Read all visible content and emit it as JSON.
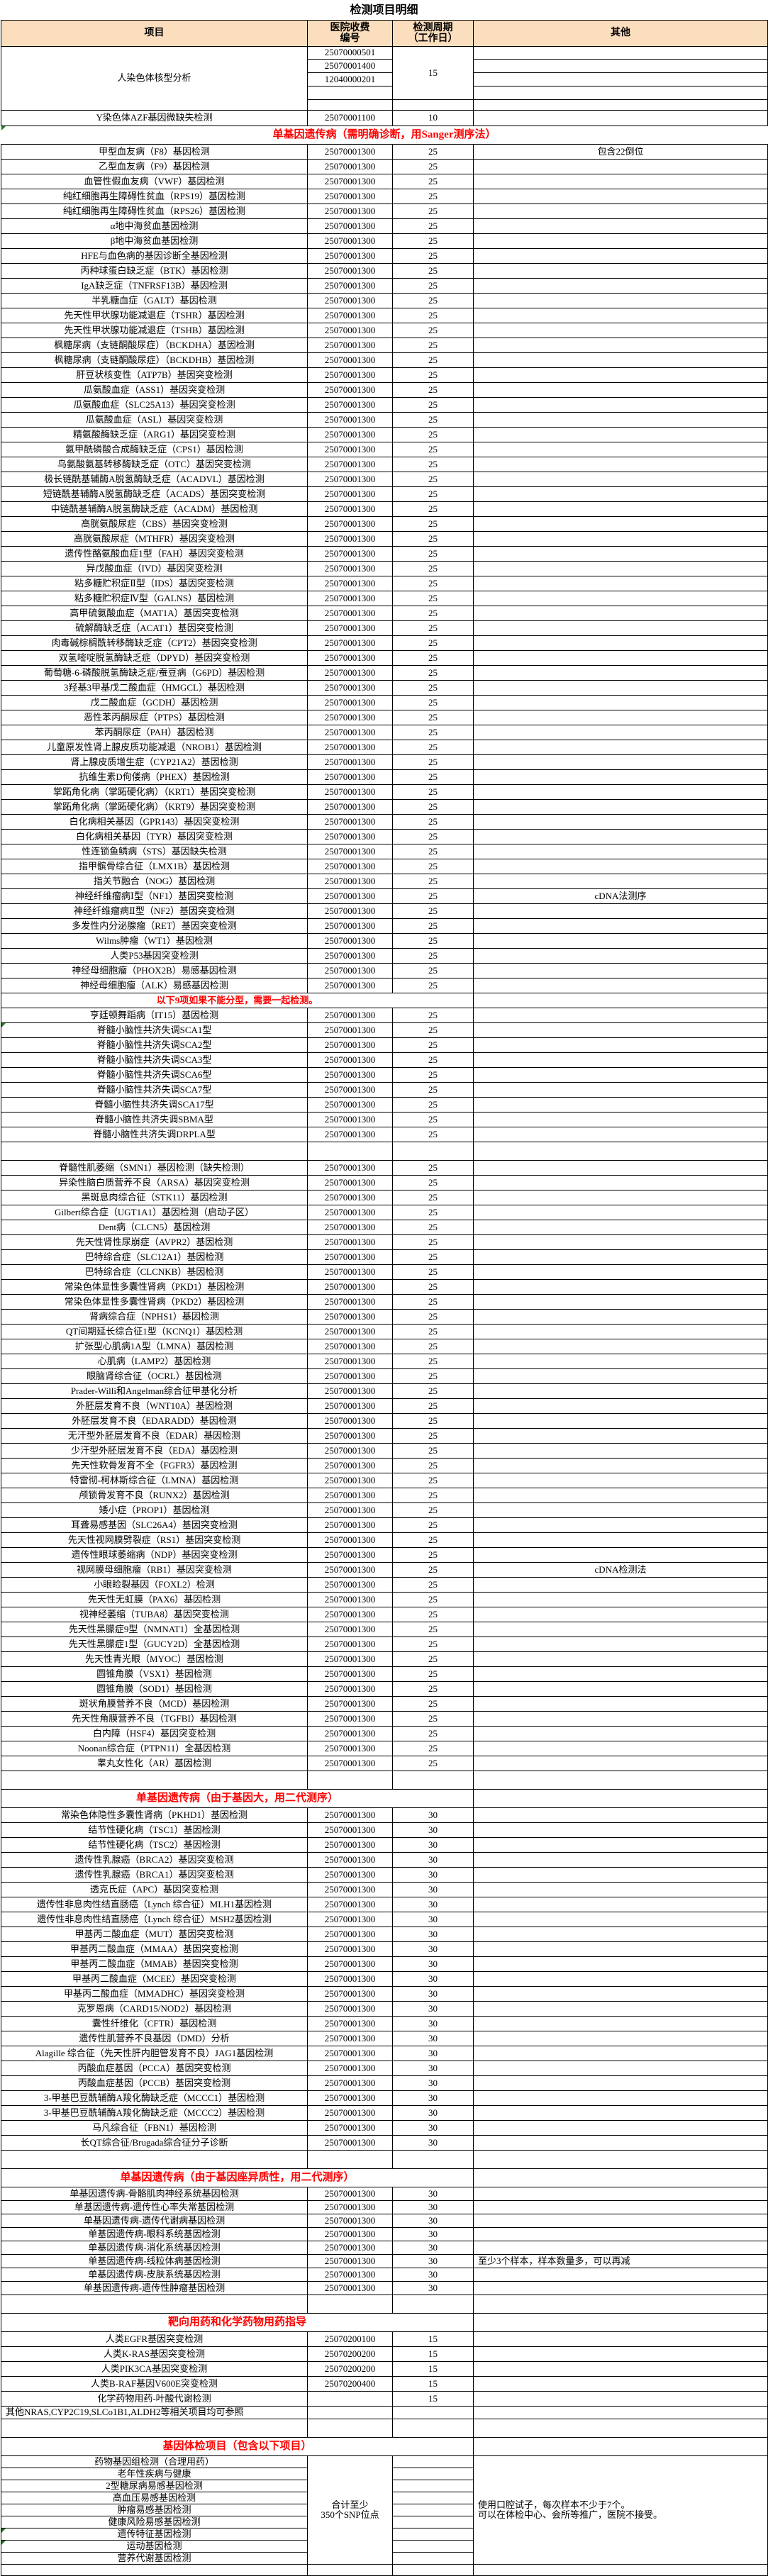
{
  "title": "检测项目明细",
  "columns": [
    "项目",
    "医院收费\n编号",
    "检测周期\n（工作日）",
    "其他"
  ],
  "blocks": [
    {
      "kind": "karyotype",
      "item": "人染色体核型分析",
      "codes": [
        "25070000501",
        "25070001400",
        "12040000201",
        "",
        ""
      ],
      "period": "15"
    },
    {
      "kind": "rows",
      "rh": 22,
      "rows": [
        {
          "i": "Y染色体AZF基因微缺失检测",
          "c": "25070001100",
          "p": "10",
          "o": ""
        }
      ]
    },
    {
      "kind": "section",
      "label": "单基因遗传病（需明确诊断，用Sanger测序法）",
      "full": 1,
      "marker": 1
    },
    {
      "kind": "rows",
      "c": "25070001300",
      "p": "25",
      "rows": [
        {
          "i": "甲型血友病（F8）基因检测",
          "o": "包含22倒位"
        },
        {
          "i": "乙型血友病（F9）基因检测"
        },
        {
          "i": "血管性假血友病（VWF）基因检测"
        },
        {
          "i": "纯红细胞再生障碍性贫血（RPS19）基因检测"
        },
        {
          "i": "纯红细胞再生障碍性贫血（RPS26）基因检测"
        },
        {
          "i": "α地中海贫血基因检测"
        },
        {
          "i": "β地中海贫血基因检测"
        },
        {
          "i": "HFE与血色病的基因诊断全基因检测"
        },
        {
          "i": "丙种球蛋白缺乏症（BTK）基因检测"
        },
        {
          "i": "IgA缺乏症（TNFRSF13B）基因检测"
        },
        {
          "i": "半乳糖血症（GALT）基因检测"
        },
        {
          "i": "先天性甲状腺功能减退症（TSHR）基因检测"
        },
        {
          "i": "先天性甲状腺功能减退症（TSHB）基因检测"
        },
        {
          "i": "枫糖尿病（支链酮酸尿症）（BCKDHA）基因检测"
        },
        {
          "i": "枫糖尿病（支链酮酸尿症）（BCKDHB）基因检测"
        },
        {
          "i": "肝豆状核变性（ATP7B）基因突变检测"
        },
        {
          "i": "瓜氨酸血症（ASS1）基因突变检测"
        },
        {
          "i": "瓜氨酸血症（SLC25A13）基因突变检测"
        },
        {
          "i": "瓜氨酸血症（ASL）基因突变检测"
        },
        {
          "i": "精氨酸酶缺乏症（ARG1）基因突变检测"
        },
        {
          "i": "氨甲酰磷酸合成酶缺乏症（CPS1）基因检测"
        },
        {
          "i": "鸟氨酸氨基转移酶缺乏症（OTC）基因突变检测"
        },
        {
          "i": "极长链酰基辅酶A脱氢酶缺乏症（ACADVL）基因检测"
        },
        {
          "i": "短链酰基辅酶A脱氢酶缺乏症（ACADS）基因突变检测"
        },
        {
          "i": "中链酰基辅酶A脱氢酶缺乏症（ACADM）基因检测"
        },
        {
          "i": "高胱氨酸尿症（CBS）基因突变检测"
        },
        {
          "i": "高胱氨酸尿症（MTHFR）基因突变检测"
        },
        {
          "i": "遗传性酪氨酸血症1型（FAH）基因突变检测"
        },
        {
          "i": "异戊酸血症（IVD）基因突变检测"
        },
        {
          "i": "粘多糖贮积症Ⅱ型（IDS）基因突变检测"
        },
        {
          "i": "粘多糖贮积症Ⅳ型（GALNS）基因检测"
        },
        {
          "i": "高甲硫氨酸血症（MAT1A）基因突变检测"
        },
        {
          "i": "硫解酶缺乏症（ACAT1）基因突变检测"
        },
        {
          "i": "肉毒碱棕榈酰转移酶缺乏症（CPT2）基因突变检测"
        },
        {
          "i": "双氢嘧啶脱氢酶缺乏症（DPYD）基因突变检测"
        },
        {
          "i": "葡萄糖-6-磷酸脱氢酶缺乏症/蚕豆病（G6PD）基因检测"
        },
        {
          "i": "3羟基3甲基戊二酸血症（HMGCL）基因检测"
        },
        {
          "i": "戊二酸血症（GCDH）基因检测"
        },
        {
          "i": "恶性苯丙酮尿症（PTPS）基因检测"
        },
        {
          "i": "苯丙酮尿症（PAH）基因检测"
        },
        {
          "i": "儿童原发性肾上腺皮质功能减退（NROB1）基因检测"
        },
        {
          "i": "肾上腺皮质增生症（CYP21A2）基因检测"
        },
        {
          "i": "抗维生素D佝偻病（PHEX）基因检测"
        },
        {
          "i": "掌跖角化病（掌跖硬化病）（KRT1）基因突变检测"
        },
        {
          "i": "掌跖角化病（掌跖硬化病）（KRT9）基因突变检测"
        },
        {
          "i": "白化病相关基因（GPR143）基因突变检测"
        },
        {
          "i": "白化病相关基因（TYR）基因突变检测"
        },
        {
          "i": "性连锁鱼鳞病（STS）基因缺失检测"
        },
        {
          "i": "指甲髌骨综合征（LMX1B）基因检测"
        },
        {
          "i": "指关节融合（NOG）基因检测"
        },
        {
          "i": "神经纤维瘤病Ⅰ型（NF1）基因突变检测",
          "o": "cDNA法测序"
        },
        {
          "i": "神经纤维瘤病Ⅱ型（NF2）基因突变检测"
        },
        {
          "i": "多发性内分泌腺瘤（RET）基因突变检测"
        },
        {
          "i": "Wilms肿瘤（WT1）基因检测"
        },
        {
          "i": "人类P53基因突变检测"
        },
        {
          "i": "神经母细胞瘤（PHOX2B）易感基因检测"
        },
        {
          "i": "神经母细胞瘤（ALK）易感基因检测"
        }
      ]
    },
    {
      "kind": "note",
      "label": "以下9项如果不能分型，需要一起检测。"
    },
    {
      "kind": "rows",
      "c": "25070001300",
      "p": "25",
      "rows": [
        {
          "i": "亨廷顿舞蹈病（IT15）基因检测"
        },
        {
          "i": "脊髓小脑性共济失调SCA1型",
          "m": 1
        },
        {
          "i": "脊髓小脑性共济失调SCA2型"
        },
        {
          "i": "脊髓小脑性共济失调SCA3型"
        },
        {
          "i": "脊髓小脑性共济失调SCA6型"
        },
        {
          "i": "脊髓小脑性共济失调SCA7型"
        },
        {
          "i": "脊髓小脑性共济失调SCA17型"
        },
        {
          "i": "脊髓小脑性共济失调SBMA型"
        },
        {
          "i": "脊髓小脑性共济失调DRPLA型"
        }
      ]
    },
    {
      "kind": "empty"
    },
    {
      "kind": "rows",
      "c": "25070001300",
      "p": "25",
      "rows": [
        {
          "i": "脊髓性肌萎缩（SMN1）基因检测（缺失检测）"
        },
        {
          "i": "异染性脑白质营养不良（ARSA）基因突变检测"
        },
        {
          "i": "黑斑息肉综合征（STK11）基因检测"
        },
        {
          "i": "Gilbert综合症（UGT1A1）基因检测（启动子区）"
        },
        {
          "i": "Dent病（CLCN5）基因检测"
        },
        {
          "i": "先天性肾性尿崩症（AVPR2）基因检测"
        },
        {
          "i": "巴特综合症（SLC12A1）基因检测"
        },
        {
          "i": "巴特综合症（CLCNKB）基因检测"
        },
        {
          "i": "常染色体显性多囊性肾病（PKD1）基因检测"
        },
        {
          "i": "常染色体显性多囊性肾病（PKD2）基因检测"
        },
        {
          "i": "肾病综合症（NPHS1）基因检测"
        },
        {
          "i": "QT间期延长综合征1型（KCNQ1）基因检测"
        },
        {
          "i": "扩张型心肌病1A型（LMNA）基因检测"
        },
        {
          "i": "心肌病（LAMP2）基因检测"
        },
        {
          "i": "眼脑肾综合征（OCRL）基因检测"
        },
        {
          "i": "Prader-Willi和Angelman综合征甲基化分析"
        },
        {
          "i": "外胚层发育不良（WNT10A）基因检测"
        },
        {
          "i": "外胚层发育不良（EDARADD）基因检测"
        },
        {
          "i": "无汗型外胚层发育不良（EDAR）基因检测"
        },
        {
          "i": "少汗型外胚层发育不良（EDA）基因检测"
        },
        {
          "i": "先天性软骨发育不全（FGFR3）基因检测"
        },
        {
          "i": "特雷彻-柯林斯综合征（LMNA）基因检测"
        },
        {
          "i": "颅锁骨发育不良（RUNX2）基因检测"
        },
        {
          "i": "矮小症（PROP1）基因检测"
        },
        {
          "i": "耳聋易感基因（SLC26A4）基因突变检测"
        },
        {
          "i": "先天性视网膜劈裂症（RS1）基因突变检测"
        },
        {
          "i": "遗传性眼球萎缩病（NDP）基因突变检测"
        },
        {
          "i": "视网膜母细胞瘤（RB1）基因突变检测",
          "o": "cDNA检测法"
        },
        {
          "i": "小眼睑裂基因（FOXL2）检测"
        },
        {
          "i": "先天性无虹膜（PAX6）基因检测"
        },
        {
          "i": "视神经萎缩（TUBA8）基因突变检测"
        },
        {
          "i": "先天性黑朦症9型（NMNAT1）全基因检测"
        },
        {
          "i": "先天性黑朦症1型（GUCY2D）全基因检测"
        },
        {
          "i": "先天性青光眼（MYOC）基因检测"
        },
        {
          "i": "圆锥角膜（VSX1）基因检测"
        },
        {
          "i": "圆锥角膜（SOD1）基因检测"
        },
        {
          "i": "斑状角膜营养不良（MCD）基因检测"
        },
        {
          "i": "先天性角膜营养不良（TGFBI）基因检测"
        },
        {
          "i": "白内障（HSF4）基因突变检测"
        },
        {
          "i": "Noonan综合症（PTPN11）全基因检测"
        },
        {
          "i": "睾丸女性化（AR）基因检测"
        }
      ]
    },
    {
      "kind": "empty"
    },
    {
      "kind": "section",
      "label": "单基因遗传病（由于基因大，用二代测序）"
    },
    {
      "kind": "rows",
      "c": "25070001300",
      "p": "30",
      "rows": [
        {
          "i": "常染色体隐性多囊性肾病（PKHD1）基因检测"
        },
        {
          "i": "结节性硬化病（TSC1）基因检测"
        },
        {
          "i": "结节性硬化病（TSC2）基因检测"
        },
        {
          "i": "遗传性乳腺癌（BRCA2）基因突变检测"
        },
        {
          "i": "遗传性乳腺癌（BRCA1）基因突变检测"
        },
        {
          "i": "透克氏症（APC）基因突变检测"
        },
        {
          "i": "遗传性非息肉性结直肠癌（Lynch 综合征）MLH1基因检测"
        },
        {
          "i": "遗传性非息肉性结直肠癌（Lynch 综合征）MSH2基因检测"
        },
        {
          "i": "甲基丙二酸血症（MUT）基因突变检测"
        },
        {
          "i": "甲基丙二酸血症（MMAA）基因突变检测"
        },
        {
          "i": "甲基丙二酸血症（MMAB）基因突变检测"
        },
        {
          "i": "甲基丙二酸血症（MCEE）基因突变检测"
        },
        {
          "i": "甲基丙二酸血症（MMADHC）基因突变检测"
        },
        {
          "i": "克罗恩病（CARD15/NOD2）基因检测"
        },
        {
          "i": "囊性纤维化（CFTR）基因检测"
        },
        {
          "i": "遗传性肌营养不良基因（DMD）分析"
        },
        {
          "i": "Alagille 综合征（先天性肝内胆管发育不良）JAG1基因检测"
        },
        {
          "i": "丙酸血症基因（PCCA）基因突变检测"
        },
        {
          "i": "丙酸血症基因（PCCB）基因突变检测"
        },
        {
          "i": "3-甲基巴豆酰辅酶A羧化酶缺乏症（MCCC1）基因检测"
        },
        {
          "i": "3-甲基巴豆酰辅酶A羧化酶缺乏症（MCCC2）基因检测"
        },
        {
          "i": "马凡综合征（FBN1）基因检测"
        },
        {
          "i": "长QT综合征/Brugada综合征分子诊断"
        }
      ]
    },
    {
      "kind": "empty"
    },
    {
      "kind": "section",
      "label": "单基因遗传病（由于基因座异质性，用二代测序）"
    },
    {
      "kind": "rows",
      "c": "25070001300",
      "p": "30",
      "rh": 19,
      "rows": [
        {
          "i": "单基因遗传病-骨骼肌肉神经系统基因检测"
        },
        {
          "i": "单基因遗传病-遗传性心率失常基因检测"
        },
        {
          "i": "单基因遗传病-遗传代谢病基因检测"
        },
        {
          "i": "单基因遗传病-眼科系统基因检测"
        },
        {
          "i": "单基因遗传病-消化系统基因检测"
        },
        {
          "i": "单基因遗传病-线粒体病基因检测",
          "o": "至少3个样本，样本数量多，可以再减",
          "ol": 1
        },
        {
          "i": "单基因遗传病-皮肤系统基因检测"
        },
        {
          "i": "单基因遗传病-遗传性肿瘤基因检测"
        }
      ]
    },
    {
      "kind": "empty"
    },
    {
      "kind": "section",
      "label": "靶向用药和化学药物用药指导"
    },
    {
      "kind": "rows",
      "p": "15",
      "rows": [
        {
          "i": "人类EGFR基因突变检测",
          "c": "25070200100"
        },
        {
          "i": "人类K-RAS基因突变检测",
          "c": "25070200200"
        },
        {
          "i": "人类PIK3CA基因突变检测",
          "c": "25070200200"
        },
        {
          "i": "人类B-RAF基因V600E突变检测",
          "c": "25070200400"
        },
        {
          "i": "化学药物用药-叶酸代谢检测",
          "c": ""
        },
        {
          "i": "其他NRAS,CYP2C19,SLCo1B1,ALDH2等相关项目均可参照",
          "c": "",
          "p": "",
          "o": "",
          "l": 1,
          "rh": 18
        }
      ]
    },
    {
      "kind": "empty"
    },
    {
      "kind": "section",
      "label": "基因体检项目（包含以下项目）"
    },
    {
      "kind": "physical",
      "items": [
        {
          "i": "药物基因组检测（合理用药）"
        },
        {
          "i": "老年性疾病与健康"
        },
        {
          "i": "2型糖尿病易感基因检测"
        },
        {
          "i": "高血压易感基因检测"
        },
        {
          "i": "肿瘤易感基因检测"
        },
        {
          "i": "健康风险易感基因检测"
        },
        {
          "i": "遗传特征基因检测",
          "m": 1
        },
        {
          "i": "运动基因检测",
          "m": 1
        },
        {
          "i": "营养代谢基因检测"
        }
      ],
      "code_note": "合计至少\n350个SNP位点",
      "other_note": "使用口腔试子，每次样本不少于7个。\n可以在体检中心、会所等推广，医院不接受。"
    },
    {
      "kind": "empty",
      "h": 16
    }
  ]
}
